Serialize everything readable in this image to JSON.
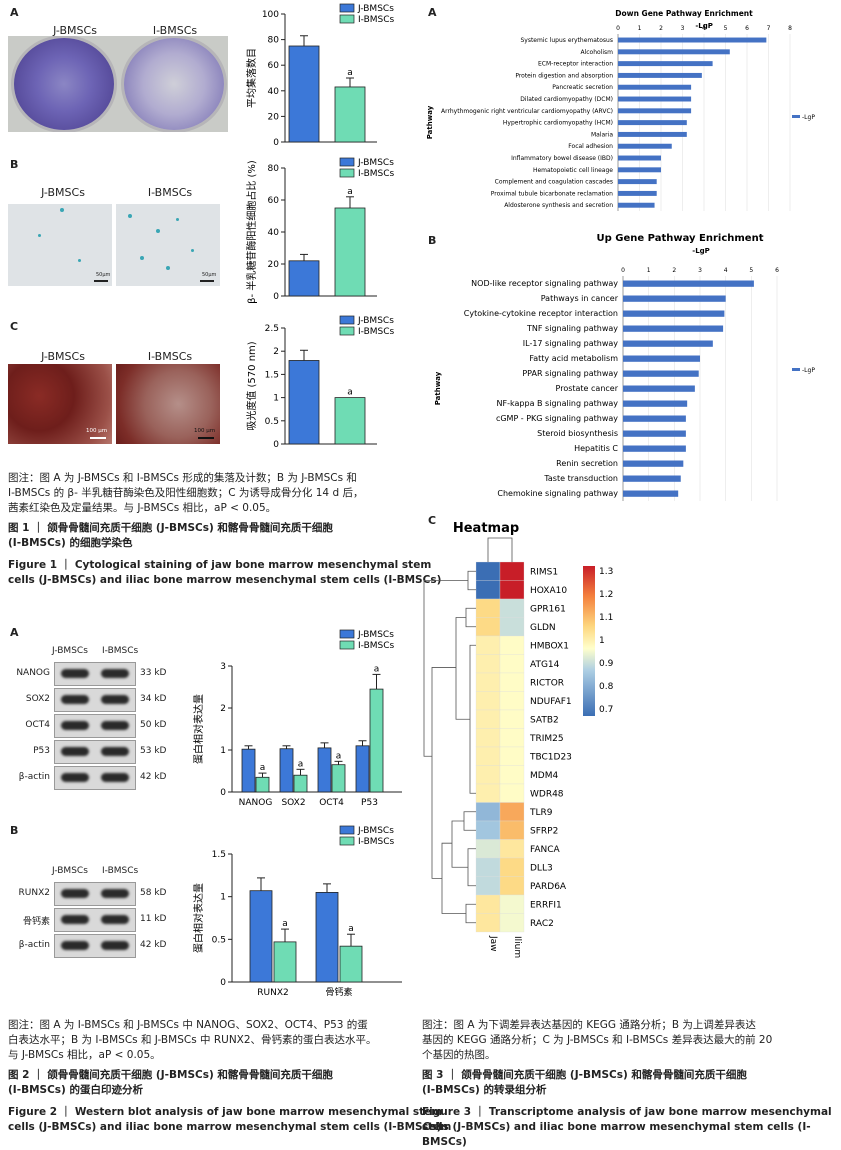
{
  "fig1": {
    "panelA": {
      "label": "A",
      "photo_labels": [
        "J-BMSCs",
        "I-BMSCs"
      ]
    },
    "panelB": {
      "label": "B",
      "photo_labels": [
        "J-BMSCs",
        "I-BMSCs"
      ],
      "scale": [
        "50μm",
        "50μm"
      ]
    },
    "panelC": {
      "label": "C",
      "photo_labels": [
        "J-BMSCs",
        "I-BMSCs"
      ],
      "scale": [
        "100 μm",
        "100 μm"
      ]
    },
    "caption_note": [
      "图注：图 A 为 J-BMSCs 和 I-BMSCs 形成的集落及计数；B 为 J-BMSCs 和",
      "I-BMSCs 的 β- 半乳糖苷酶染色及阳性细胞数；C 为诱导成骨分化 14 d 后，",
      "茜素红染色及定量结果。与 J-BMSCs 相比，aP < 0.05。"
    ],
    "title_cn": [
      "图 1 ｜ 颌骨骨髓间充质干细胞 (J-BMSCs) 和髂骨骨髓间充质干细胞",
      "(I-BMSCs) 的细胞学染色"
    ],
    "title_en": [
      "Figure 1 ｜ Cytological staining of jaw bone marrow mesenchymal stem",
      "cells (J-BMSCs) and iliac bone marrow mesenchymal stem cells (I-BMSCs)"
    ]
  },
  "fig2": {
    "panelA": {
      "label": "A",
      "lane_labels": [
        "J-BMSCs",
        "I-BMSCs"
      ],
      "rows": [
        {
          "name": "NANOG",
          "kd": "33 kD"
        },
        {
          "name": "SOX2",
          "kd": "34 kD"
        },
        {
          "name": "OCT4",
          "kd": "50 kD"
        },
        {
          "name": "P53",
          "kd": "53 kD"
        },
        {
          "name": "β-actin",
          "kd": "42 kD"
        }
      ]
    },
    "panelB": {
      "label": "B",
      "lane_labels": [
        "J-BMSCs",
        "I-BMSCs"
      ],
      "rows": [
        {
          "name": "RUNX2",
          "kd": "58 kD"
        },
        {
          "name": "骨钙素",
          "kd": "11 kD"
        },
        {
          "name": "β-actin",
          "kd": "42 kD"
        }
      ]
    },
    "caption_note": [
      "图注：图 A 为 I-BMSCs 和 J-BMSCs 中 NANOG、SOX2、OCT4、P53 的蛋",
      "白表达水平；B 为 I-BMSCs 和 J-BMSCs 中 RUNX2、骨钙素的蛋白表达水平。",
      "与 J-BMSCs 相比，aP < 0.05。"
    ],
    "title_cn": [
      "图 2 ｜ 颌骨骨髓间充质干细胞 (J-BMSCs) 和髂骨骨髓间充质干细胞",
      "(I-BMSCs) 的蛋白印迹分析"
    ],
    "title_en": [
      "Figure 2 ｜ Western blot analysis of jaw bone marrow mesenchymal stem",
      "cells (J-BMSCs) and iliac bone marrow mesenchymal stem cells (I-BMSCs)"
    ]
  },
  "fig3": {
    "panelA": {
      "label": "A"
    },
    "panelB": {
      "label": "B"
    },
    "panelC": {
      "label": "C"
    },
    "caption_note": [
      "图注：图 A 为下调差异表达基因的 KEGG 通路分析；B 为上调差异表达",
      "基因的 KEGG 通路分析；C 为 J-BMSCs 和 I-BMSCs 差异表达最大的前 20",
      "个基因的热图。"
    ],
    "title_cn": [
      "图 3 ｜ 颌骨骨髓间充质干细胞 (J-BMSCs) 和髂骨骨髓间充质干细胞",
      "(I-BMSCs) 的转录组分析"
    ],
    "title_en": [
      "Figure 3 ｜ Transcriptome analysis of jaw bone marrow mesenchymal stem",
      "cells (J-BMSCs) and iliac bone marrow mesenchymal stem cells (I-BMSCs)"
    ]
  },
  "colors": {
    "j": "#3c78d8",
    "i": "#6fdcb4"
  },
  "chart_data": [
    {
      "id": "f1a",
      "type": "bar",
      "ylabel": "平均集落数目",
      "ylim": [
        0,
        100
      ],
      "yticks": [
        0,
        20,
        40,
        60,
        80,
        100
      ],
      "legend": [
        "J-BMSCs",
        "I-BMSCs"
      ],
      "categories": [
        "J-BMSCs",
        "I-BMSCs"
      ],
      "values": [
        75,
        43
      ],
      "errors": [
        8,
        7
      ],
      "sig": [
        "",
        "a"
      ]
    },
    {
      "id": "f1b",
      "type": "bar",
      "ylabel": "β- 半乳糖苷酶阳性细胞占比 (%)",
      "ylim": [
        0,
        80
      ],
      "yticks": [
        0,
        20,
        40,
        60,
        80
      ],
      "legend": [
        "J-BMSCs",
        "I-BMSCs"
      ],
      "categories": [
        "J-BMSCs",
        "I-BMSCs"
      ],
      "values": [
        22,
        55
      ],
      "errors": [
        4,
        7
      ],
      "sig": [
        "",
        "a"
      ]
    },
    {
      "id": "f1c",
      "type": "bar",
      "ylabel": "吸光度值 (570 nm)",
      "ylim": [
        0,
        2.5
      ],
      "yticks": [
        0,
        0.5,
        1.0,
        1.5,
        2.0,
        2.5
      ],
      "legend": [
        "J-BMSCs",
        "I-BMSCs"
      ],
      "categories": [
        "J-BMSCs",
        "I-BMSCs"
      ],
      "values": [
        1.8,
        1.0
      ],
      "errors": [
        0.22,
        0
      ],
      "sig": [
        "",
        "a"
      ]
    },
    {
      "id": "f2a",
      "type": "bar",
      "ylabel": "蛋白相对表达量",
      "ylim": [
        0,
        3
      ],
      "yticks": [
        0,
        1,
        2,
        3
      ],
      "legend": [
        "J-BMSCs",
        "I-BMSCs"
      ],
      "categories": [
        "NANOG",
        "SOX2",
        "OCT4",
        "P53"
      ],
      "series": [
        {
          "name": "J-BMSCs",
          "values": [
            1.02,
            1.03,
            1.05,
            1.1
          ],
          "errors": [
            0.08,
            0.07,
            0.12,
            0.12
          ]
        },
        {
          "name": "I-BMSCs",
          "values": [
            0.35,
            0.4,
            0.65,
            2.45
          ],
          "errors": [
            0.1,
            0.14,
            0.08,
            0.35
          ]
        }
      ],
      "sig": [
        "a",
        "a",
        "a",
        "a"
      ]
    },
    {
      "id": "f2b",
      "type": "bar",
      "ylabel": "蛋白相对表达量",
      "ylim": [
        0,
        1.5
      ],
      "yticks": [
        0,
        0.5,
        1.0,
        1.5
      ],
      "legend": [
        "J-BMSCs",
        "I-BMSCs"
      ],
      "categories": [
        "RUNX2",
        "骨钙素"
      ],
      "series": [
        {
          "name": "J-BMSCs",
          "values": [
            1.07,
            1.05
          ],
          "errors": [
            0.15,
            0.1
          ]
        },
        {
          "name": "I-BMSCs",
          "values": [
            0.47,
            0.42
          ],
          "errors": [
            0.15,
            0.14
          ]
        }
      ],
      "sig": [
        "a",
        "a"
      ]
    },
    {
      "id": "f3a",
      "type": "bar",
      "title": "Down Gene Pathway Enrichment",
      "xlabel": "-LgP",
      "ylabel": "Pathway",
      "legend": [
        "-LgP"
      ],
      "xlim": [
        0,
        8
      ],
      "xticks": [
        0,
        1,
        2,
        3,
        4,
        5,
        6,
        7,
        8
      ],
      "categories": [
        "Systemic lupus erythematosus",
        "Alcoholism",
        "ECM-receptor interaction",
        "Protein digestion and absorption",
        "Pancreatic secretion",
        "Dilated cardiomyopathy (DCM)",
        "Arrhythmogenic right ventricular cardiomyopathy (ARVC)",
        "Hypertrophic cardiomyopathy (HCM)",
        "Malaria",
        "Focal adhesion",
        "Inflammatory bowel disease (IBD)",
        "Hematopoietic cell lineage",
        "Complement and coagulation cascades",
        "Proximal tubule bicarbonate reclamation",
        "Aldosterone synthesis and secretion"
      ],
      "values": [
        6.9,
        5.2,
        4.4,
        3.9,
        3.4,
        3.4,
        3.4,
        3.2,
        3.2,
        2.5,
        2.0,
        2.0,
        1.8,
        1.8,
        1.7
      ]
    },
    {
      "id": "f3b",
      "type": "bar",
      "title": "Up Gene Pathway Enrichment",
      "xlabel": "-LgP",
      "ylabel": "Pathway",
      "legend": [
        "-LgP"
      ],
      "xlim": [
        0,
        6
      ],
      "xticks": [
        0,
        1,
        2,
        3,
        4,
        5,
        6
      ],
      "categories": [
        "NOD-like receptor signaling pathway",
        "Pathways in cancer",
        "Cytokine-cytokine receptor interaction",
        "TNF signaling pathway",
        "IL-17 signaling pathway",
        "Fatty acid metabolism",
        "PPAR signaling pathway",
        "Prostate cancer",
        "NF-kappa B signaling pathway",
        "cGMP - PKG signaling pathway",
        "Steroid biosynthesis",
        "Hepatitis C",
        "Renin secretion",
        "Taste transduction",
        "Chemokine signaling pathway"
      ],
      "values": [
        5.1,
        4.0,
        3.95,
        3.9,
        3.5,
        3.0,
        2.95,
        2.8,
        2.5,
        2.45,
        2.45,
        2.45,
        2.35,
        2.25,
        2.15
      ]
    },
    {
      "id": "f3c",
      "type": "heatmap",
      "title": "Heatmap",
      "columns": [
        "Jaw",
        "Ilium"
      ],
      "rows": [
        "RIMS1",
        "HOXA10",
        "GPR161",
        "GLDN",
        "HMBOX1",
        "ATG14",
        "RICTOR",
        "NDUFAF1",
        "SATB2",
        "TRIM25",
        "TBC1D23",
        "MDM4",
        "WDR48",
        "TLR9",
        "SFRP2",
        "FANCA",
        "DLL3",
        "PARD6A",
        "ERRFI1",
        "RAC2"
      ],
      "values": [
        [
          0.7,
          1.35
        ],
        [
          0.7,
          1.35
        ],
        [
          1.08,
          0.93
        ],
        [
          1.08,
          0.93
        ],
        [
          1.03,
          1.0
        ],
        [
          1.03,
          1.0
        ],
        [
          1.03,
          1.0
        ],
        [
          1.03,
          1.0
        ],
        [
          1.03,
          1.0
        ],
        [
          1.03,
          1.0
        ],
        [
          1.03,
          1.0
        ],
        [
          1.03,
          1.0
        ],
        [
          1.03,
          1.0
        ],
        [
          0.85,
          1.16
        ],
        [
          0.88,
          1.13
        ],
        [
          0.95,
          1.05
        ],
        [
          0.92,
          1.08
        ],
        [
          0.92,
          1.08
        ],
        [
          1.05,
          0.98
        ],
        [
          1.05,
          0.98
        ]
      ],
      "colorbar_ticks": [
        "1.3",
        "1.2",
        "1.1",
        "1",
        "0.9",
        "0.8",
        "0.7"
      ]
    }
  ]
}
